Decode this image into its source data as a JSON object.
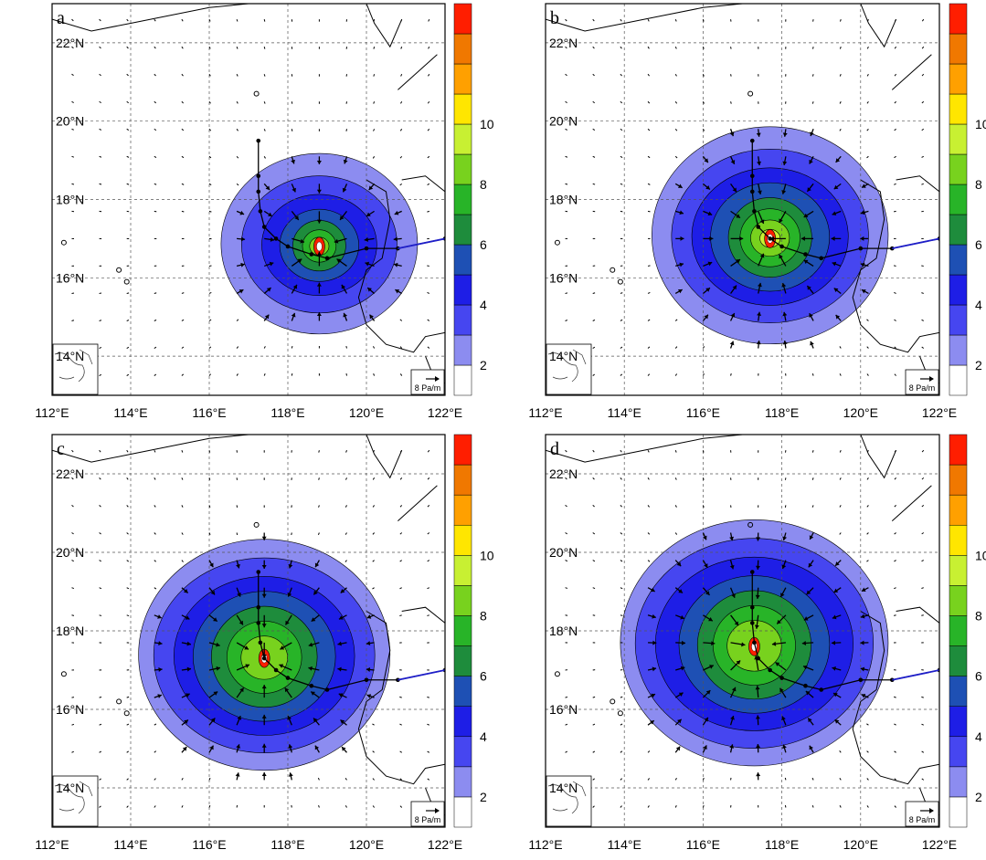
{
  "figure": {
    "lon_ticks": [
      "112°E",
      "114°E",
      "116°E",
      "118°E",
      "120°E",
      "122°E"
    ],
    "lat_ticks": [
      "14°N",
      "16°N",
      "18°N",
      "20°N",
      "22°N"
    ],
    "colorbar": {
      "labels": [
        "2",
        "4",
        "6",
        "8",
        "10"
      ],
      "colors": [
        "#ffffff",
        "#8c8cf0",
        "#4646f0",
        "#1e1ee6",
        "#1e50b4",
        "#1e8c3c",
        "#28b428",
        "#78d21e",
        "#c8f032",
        "#ffe600",
        "#ffa000",
        "#f07800",
        "#ff1e00"
      ]
    },
    "vector_reference": {
      "label": "8 Pa/m"
    },
    "panels": [
      {
        "letter": "a",
        "center": [
          118.8,
          16.8
        ],
        "radius_levels": [
          2.5,
          1.9,
          1.4,
          1.0,
          0.7,
          0.45,
          0.25
        ],
        "peak_value": 10
      },
      {
        "letter": "b",
        "center": [
          117.7,
          17.0
        ],
        "radius_levels": [
          3.0,
          2.4,
          1.9,
          1.5,
          1.1,
          0.8,
          0.5,
          0.25
        ],
        "peak_value": 10
      },
      {
        "letter": "c",
        "center": [
          117.4,
          17.3
        ],
        "radius_levels": [
          3.2,
          2.7,
          2.2,
          1.8,
          1.4,
          1.0,
          0.6
        ],
        "peak_value": 9
      },
      {
        "letter": "d",
        "center": [
          117.3,
          17.6
        ],
        "radius_levels": [
          3.4,
          2.9,
          2.4,
          1.9,
          1.5,
          1.1,
          0.7
        ],
        "peak_value": 10
      }
    ],
    "track": [
      [
        122.0,
        17.0
      ],
      [
        120.8,
        16.75
      ],
      [
        120.0,
        16.75
      ],
      [
        119.0,
        16.5
      ],
      [
        118.6,
        16.6
      ],
      [
        118.0,
        16.8
      ],
      [
        117.7,
        17.0
      ],
      [
        117.4,
        17.3
      ],
      [
        117.3,
        17.7
      ],
      [
        117.25,
        18.2
      ],
      [
        117.25,
        18.6
      ],
      [
        117.25,
        19.5
      ]
    ]
  }
}
